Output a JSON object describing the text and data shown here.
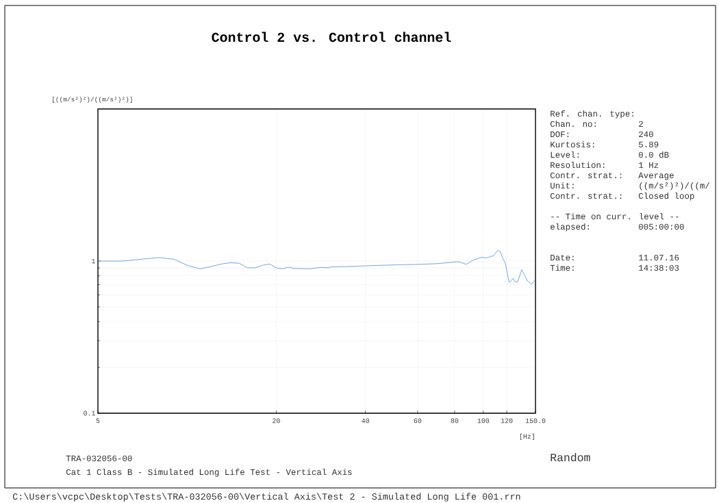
{
  "chart_data": {
    "type": "line",
    "title": "Control 2 vs. Control channel",
    "xlabel": "[Hz]",
    "ylabel": "[((m/s²)²)/((m/s²)²)]",
    "log": "xy",
    "grid": true,
    "xlim": [
      5,
      150
    ],
    "ylim": [
      0.1,
      10
    ],
    "xticks": [
      5,
      20,
      40,
      60,
      80,
      100,
      120,
      {
        "value": 150,
        "label": "150.0"
      }
    ],
    "yticks": [
      0.1,
      1
    ],
    "series": [
      {
        "color": "#4a90d9",
        "x": [
          5,
          5.99,
          8.05,
          9.0,
          10.07,
          11.03,
          11.96,
          13.05,
          14.05,
          15.0,
          16.0,
          17.0,
          18.1,
          19.0,
          20.0,
          20.97,
          22.0,
          23.0,
          26.06,
          28.1,
          30.0,
          30.6,
          34.6,
          40.0,
          49.0,
          60.0,
          70.1,
          80.0,
          82.3,
          87.5,
          91.9,
          94.3,
          99.0,
          101.4,
          103.7,
          105.9,
          108.0,
          112.0,
          114.3,
          116.3,
          118.6,
          122.2,
          123.6,
          125.9,
          128.3,
          130.5,
          134.8,
          138.2,
          141.0,
          145.3,
          150.0
        ],
        "values": [
          1.0,
          1.0,
          1.055,
          1.03,
          0.934,
          0.89,
          0.917,
          0.957,
          0.976,
          0.967,
          0.903,
          0.903,
          0.943,
          0.957,
          0.903,
          0.89,
          0.912,
          0.895,
          0.89,
          0.908,
          0.903,
          0.917,
          0.921,
          0.93,
          0.943,
          0.952,
          0.962,
          0.986,
          0.99,
          0.953,
          1.01,
          1.03,
          1.06,
          1.05,
          1.055,
          1.075,
          1.08,
          1.179,
          1.151,
          1.045,
          0.971,
          0.726,
          0.737,
          0.77,
          0.73,
          0.73,
          0.877,
          0.8,
          0.74,
          0.705,
          0.755
        ]
      }
    ],
    "annotations": [
      "Ref. chan. type:",
      "Chan. no:",
      "2",
      "DOF:",
      "240",
      "Kurtosis:",
      "5.89",
      "Level:",
      "0.0 dB",
      "Resolution:",
      "1 Hz",
      "Contr. strat.:",
      "Average",
      "Unit:",
      "((m/s²)²)/((m/",
      "Contr. strat.:",
      "Closed loop",
      "-- Time on curr. level --",
      "elapsed:",
      "005:00:00",
      "Date:",
      "11.07.16",
      "Time:",
      "14:38:03",
      "TRA-032056-00",
      "Cat 1 Class B - Simulated Long Life Test - Vertical Axis",
      "Random",
      "C:\\Users\\vcpc\\Desktop\\Tests\\TRA-032056-00\\Vertical Axis\\Test 2 - Simulated Long Life 001.rrn"
    ]
  }
}
